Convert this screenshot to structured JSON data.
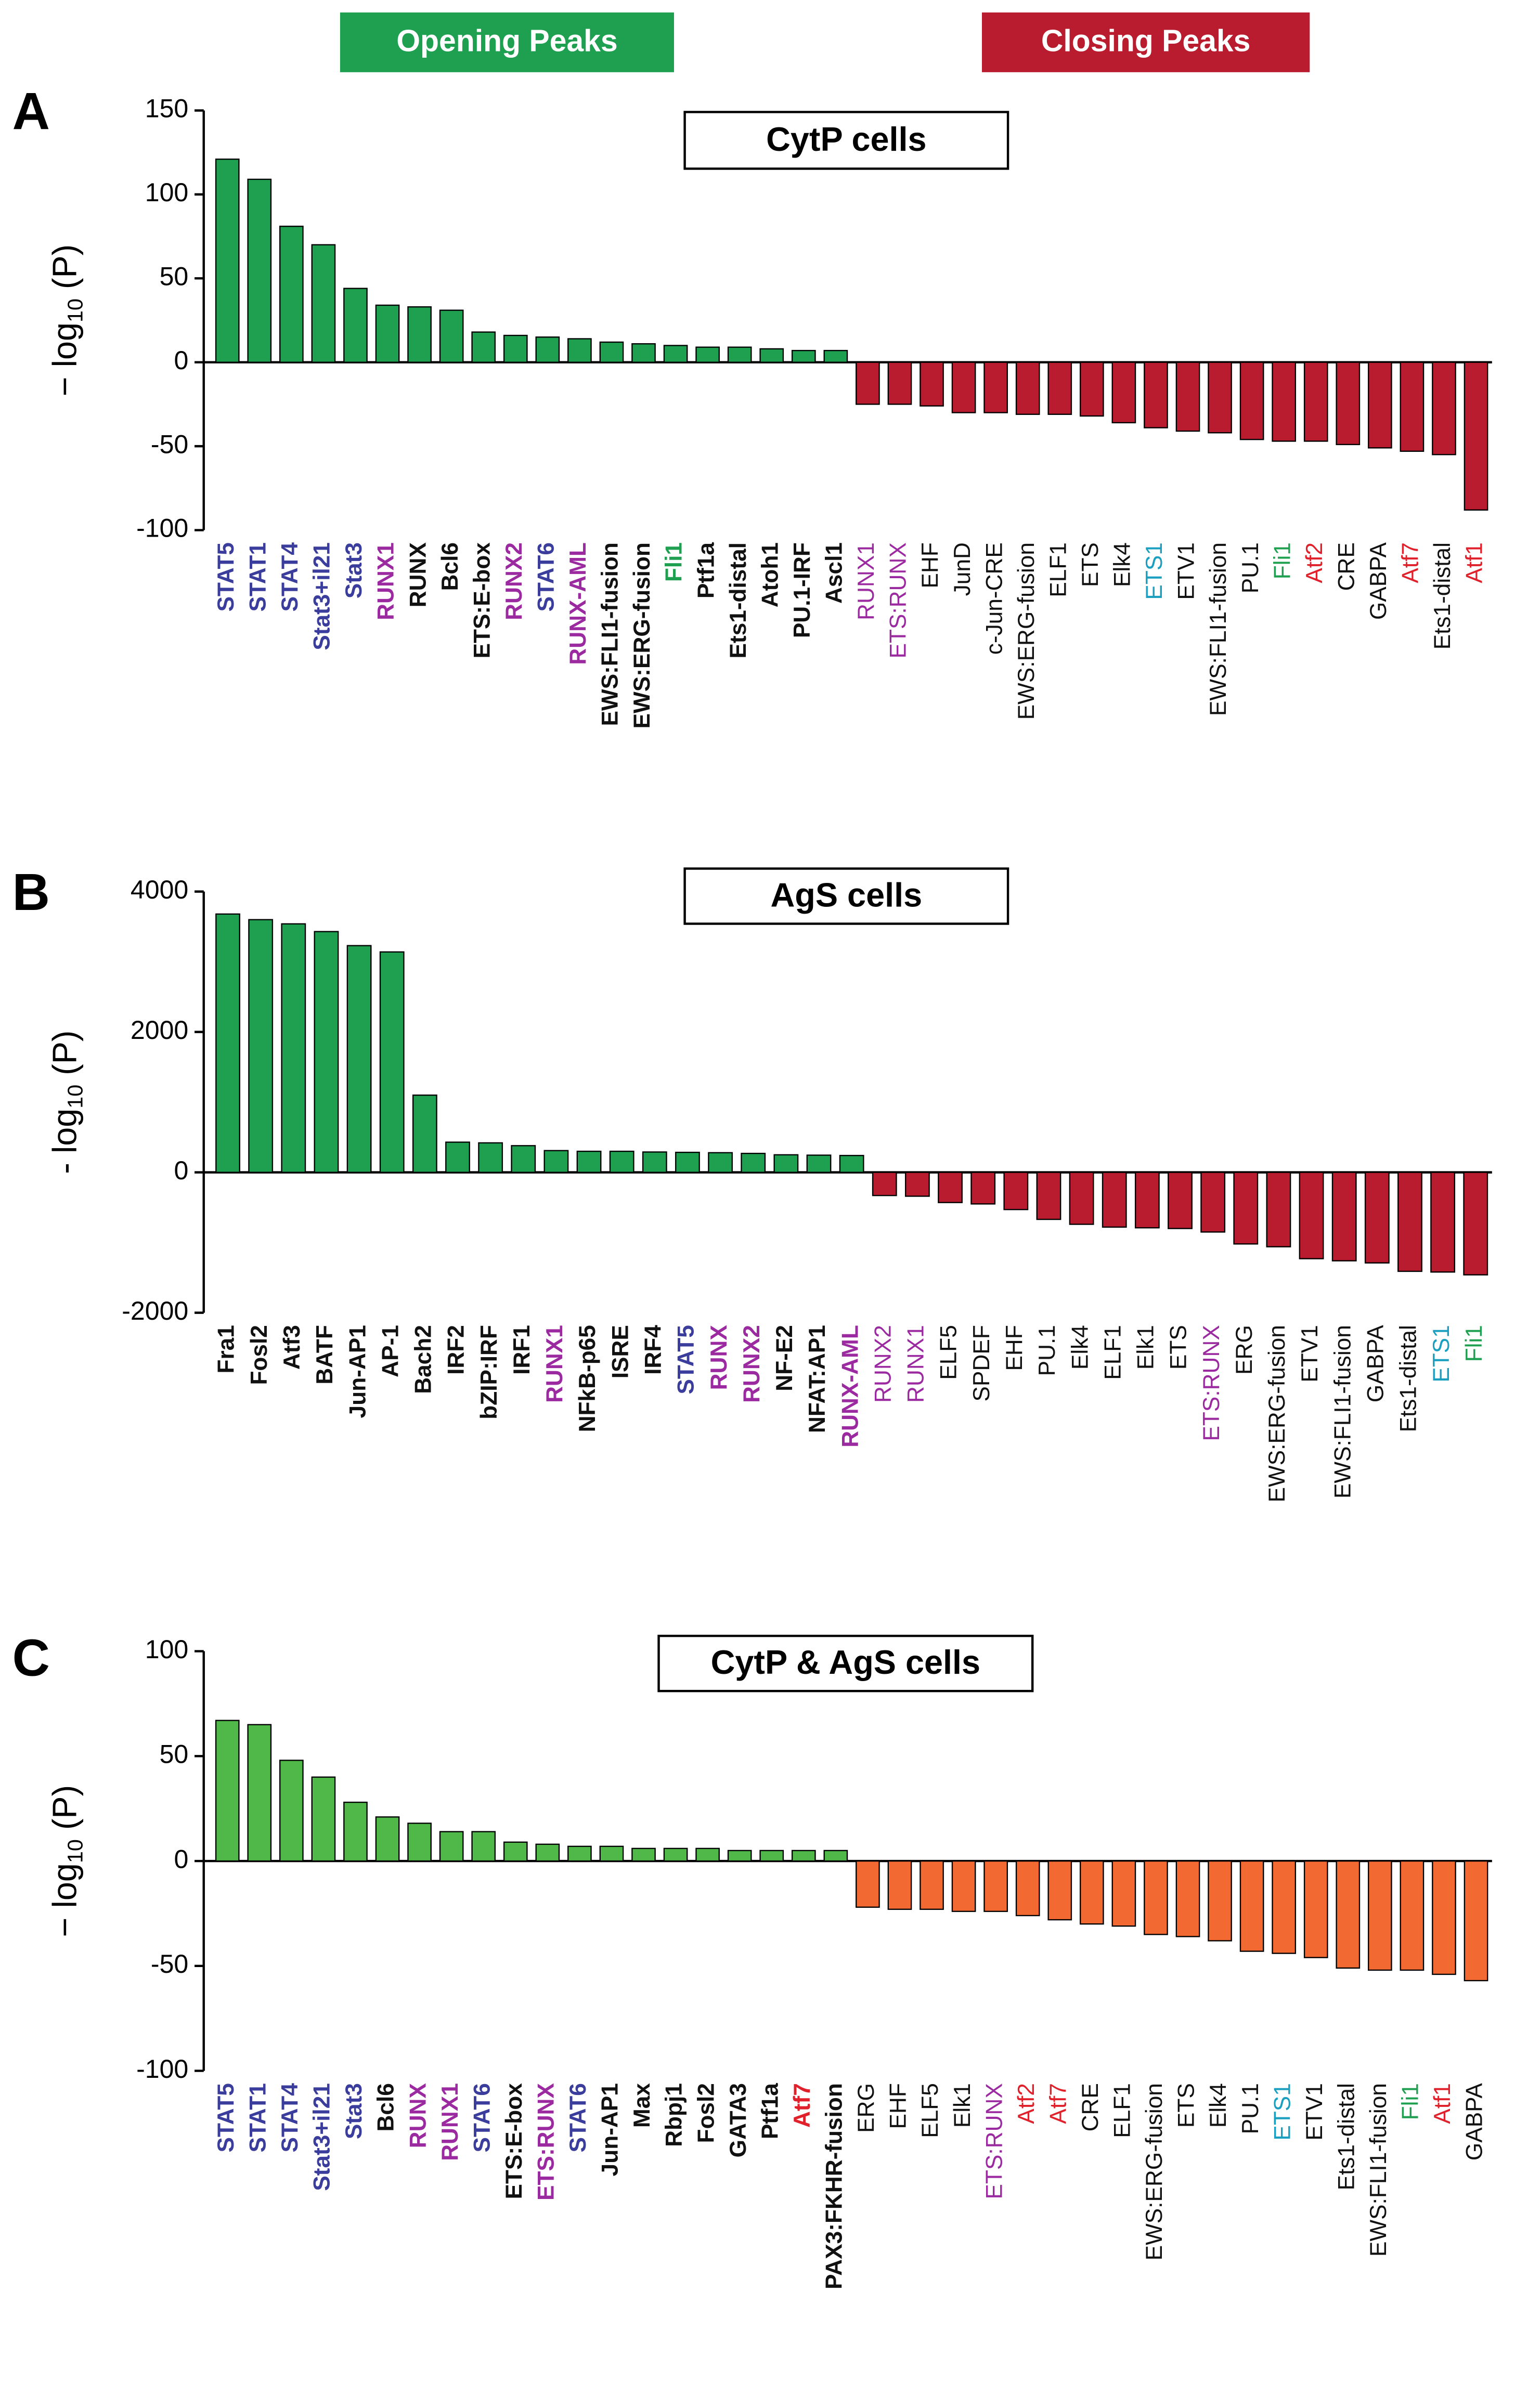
{
  "legend": [
    {
      "name": "Opening Peaks",
      "color": "#1fa050"
    },
    {
      "name": "Closing Peaks",
      "color": "#b81c2e"
    }
  ],
  "chart_data": [
    {
      "type": "bar",
      "panel": "A",
      "title": "CytP cells",
      "ylabel": [
        "− log",
        "10",
        " (P)"
      ],
      "ylim": [
        -100,
        150
      ],
      "yticks": [
        -100,
        -50,
        0,
        50,
        100,
        150
      ],
      "pos_color": "#1fa050",
      "neg_color": "#b81c2e",
      "categories": [
        "STAT5",
        "STAT1",
        "STAT4",
        "Stat3+il21",
        "Stat3",
        "RUNX1",
        "RUNX",
        "Bcl6",
        "ETS:E-box",
        "RUNX2",
        "STAT6",
        "RUNX-AML",
        "EWS:FLI1-fusion",
        "EWS:ERG-fusion",
        "Fli1",
        "Ptf1a",
        "Ets1-distal",
        "Atoh1",
        "PU.1-IRF",
        "Ascl1",
        "RUNX1",
        "ETS:RUNX",
        "EHF",
        "JunD",
        "c-Jun-CRE",
        "EWS:ERG-fusion",
        "ELF1",
        "ETS",
        "Elk4",
        "ETS1",
        "ETV1",
        "EWS:FLI1-fusion",
        "PU.1",
        "Fli1",
        "Atf2",
        "CRE",
        "GABPA",
        "Atf7",
        "Ets1-distal",
        "Atf1"
      ],
      "values": [
        121,
        109,
        81,
        70,
        44,
        34,
        33,
        31,
        18,
        16,
        15,
        14,
        12,
        11,
        10,
        9,
        9,
        8,
        7,
        7,
        -25,
        -25,
        -26,
        -30,
        -30,
        -31,
        -31,
        -32,
        -36,
        -39,
        -41,
        -42,
        -46,
        -47,
        -47,
        -49,
        -51,
        -53,
        -55,
        -88
      ],
      "label_colors": [
        "#3a3d9c",
        "#3a3d9c",
        "#3a3d9c",
        "#3a3d9c",
        "#3a3d9c",
        "#9b2aa0",
        "#111111",
        "#111111",
        "#111111",
        "#9b2aa0",
        "#3a3d9c",
        "#9b2aa0",
        "#111111",
        "#111111",
        "#1fa050",
        "#111111",
        "#111111",
        "#111111",
        "#111111",
        "#111111",
        "#9b2aa0",
        "#9b2aa0",
        "#111111",
        "#111111",
        "#111111",
        "#111111",
        "#111111",
        "#111111",
        "#111111",
        "#1a9fc0",
        "#111111",
        "#111111",
        "#111111",
        "#1fa050",
        "#e0202a",
        "#111111",
        "#111111",
        "#e0202a",
        "#111111",
        "#e0202a"
      ]
    },
    {
      "type": "bar",
      "panel": "B",
      "title": "AgS cells",
      "ylabel": [
        "- log",
        "10",
        " (P)"
      ],
      "ylim": [
        -2000,
        4000
      ],
      "yticks": [
        -2000,
        0,
        2000,
        4000
      ],
      "pos_color": "#1fa050",
      "neg_color": "#b81c2e",
      "categories": [
        "Fra1",
        "Fosl2",
        "Atf3",
        "BATF",
        "Jun-AP1",
        "AP-1",
        "Bach2",
        "IRF2",
        "bZIP:IRF",
        "IRF1",
        "RUNX1",
        "NFkB-p65",
        "ISRE",
        "IRF4",
        "STAT5",
        "RUNX",
        "RUNX2",
        "NF-E2",
        "NFAT:AP1",
        "RUNX-AML",
        "RUNX2",
        "RUNX1",
        "ELF5",
        "SPDEF",
        "EHF",
        "PU.1",
        "Elk4",
        "ELF1",
        "Elk1",
        "ETS",
        "ETS:RUNX",
        "ERG",
        "EWS:ERG-fusion",
        "ETV1",
        "EWS:FLI1-fusion",
        "GABPA",
        "Ets1-distal",
        "ETS1",
        "Fli1"
      ],
      "values": [
        3680,
        3600,
        3540,
        3430,
        3230,
        3140,
        1100,
        430,
        420,
        380,
        310,
        300,
        300,
        290,
        285,
        280,
        270,
        250,
        245,
        240,
        -330,
        -340,
        -430,
        -450,
        -530,
        -670,
        -740,
        -780,
        -790,
        -800,
        -850,
        -1020,
        -1060,
        -1230,
        -1260,
        -1290,
        -1410,
        -1420,
        -1460
      ],
      "label_colors": [
        "#111111",
        "#111111",
        "#111111",
        "#111111",
        "#111111",
        "#111111",
        "#111111",
        "#111111",
        "#111111",
        "#111111",
        "#9b2aa0",
        "#111111",
        "#111111",
        "#111111",
        "#3a3d9c",
        "#9b2aa0",
        "#9b2aa0",
        "#111111",
        "#111111",
        "#9b2aa0",
        "#9b2aa0",
        "#9b2aa0",
        "#111111",
        "#111111",
        "#111111",
        "#111111",
        "#111111",
        "#111111",
        "#111111",
        "#111111",
        "#9b2aa0",
        "#111111",
        "#111111",
        "#111111",
        "#111111",
        "#111111",
        "#111111",
        "#1a9fc0",
        "#1fa050"
      ]
    },
    {
      "type": "bar",
      "panel": "C",
      "title": "CytP & AgS cells",
      "ylabel": [
        "− log",
        "10",
        " (P)"
      ],
      "ylim": [
        -100,
        100
      ],
      "yticks": [
        -100,
        -50,
        0,
        50,
        100
      ],
      "pos_color": "#4fb848",
      "neg_color": "#f26a32",
      "categories": [
        "STAT5",
        "STAT1",
        "STAT4",
        "Stat3+il21",
        "Stat3",
        "Bcl6",
        "RUNX",
        "RUNX1",
        "STAT6",
        "ETS:E-box",
        "ETS:RUNX",
        "STAT6",
        "Jun-AP1",
        "Max",
        "Rbpj1",
        "Fosl2",
        "GATA3",
        "Ptf1a",
        "Atf7",
        "PAX3:FKHR-fusion",
        "ERG",
        "EHF",
        "ELF5",
        "Elk1",
        "ETS:RUNX",
        "Atf2",
        "Atf7",
        "CRE",
        "ELF1",
        "EWS:ERG-fusion",
        "ETS",
        "Elk4",
        "PU.1",
        "ETS1",
        "ETV1",
        "Ets1-distal",
        "EWS:FLI1-fusion",
        "Fli1",
        "Atf1",
        "GABPA"
      ],
      "values": [
        67,
        65,
        48,
        40,
        28,
        21,
        18,
        14,
        14,
        9,
        8,
        7,
        7,
        6,
        6,
        6,
        5,
        5,
        5,
        5,
        -22,
        -23,
        -23,
        -24,
        -24,
        -26,
        -28,
        -30,
        -31,
        -35,
        -36,
        -38,
        -43,
        -44,
        -46,
        -51,
        -52,
        -52,
        -54,
        -57
      ],
      "label_colors": [
        "#3a3d9c",
        "#3a3d9c",
        "#3a3d9c",
        "#3a3d9c",
        "#3a3d9c",
        "#111111",
        "#9b2aa0",
        "#9b2aa0",
        "#3a3d9c",
        "#111111",
        "#9b2aa0",
        "#3a3d9c",
        "#111111",
        "#111111",
        "#111111",
        "#111111",
        "#111111",
        "#111111",
        "#e0202a",
        "#111111",
        "#111111",
        "#111111",
        "#111111",
        "#111111",
        "#9b2aa0",
        "#e0202a",
        "#e0202a",
        "#111111",
        "#111111",
        "#111111",
        "#111111",
        "#111111",
        "#111111",
        "#1a9fc0",
        "#111111",
        "#111111",
        "#111111",
        "#1fa050",
        "#e0202a",
        "#111111"
      ]
    }
  ]
}
